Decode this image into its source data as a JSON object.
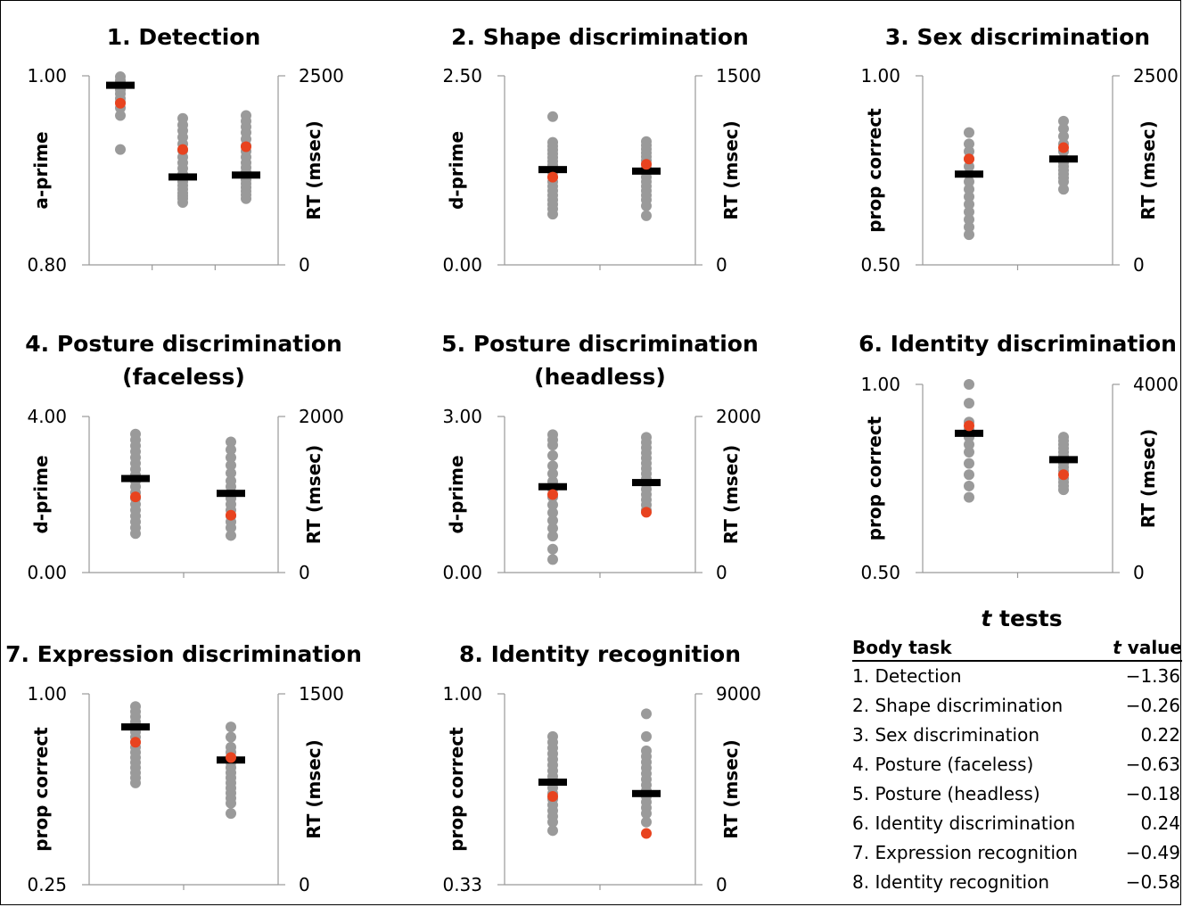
{
  "colors": {
    "dots": "#9a9a9a",
    "mean_red": "#e8431f",
    "bar": "#000000",
    "axis": "#999999"
  },
  "chart_data": [
    {
      "type": "scatter",
      "title": "1. Detection",
      "ylabel": "a-prime",
      "ylabel2": "RT (msec)",
      "ylim": [
        0.8,
        1.0
      ],
      "yticks": [
        "1.00",
        "0.80"
      ],
      "y2lim": [
        0,
        2500
      ],
      "y2ticks": [
        "2500",
        "0"
      ],
      "groups": [
        {
          "points": [
            0.999,
            0.995,
            0.992,
            0.99,
            0.988,
            0.985,
            0.981,
            0.976,
            0.972,
            0.966,
            0.958,
            0.922
          ],
          "mean": 0.99,
          "red": 0.971
        },
        {
          "points": [
            0.955,
            0.948,
            0.942,
            0.935,
            0.928,
            0.921,
            0.914,
            0.908,
            0.902,
            0.896,
            0.892,
            0.888,
            0.884,
            0.88,
            0.876,
            0.873,
            0.87,
            0.866
          ],
          "mean": 0.893,
          "red": 0.922
        },
        {
          "points": [
            0.958,
            0.952,
            0.946,
            0.94,
            0.933,
            0.926,
            0.92,
            0.914,
            0.908,
            0.903,
            0.898,
            0.894,
            0.89,
            0.886,
            0.882,
            0.878,
            0.874,
            0.87
          ],
          "mean": 0.895,
          "red": 0.925
        }
      ]
    },
    {
      "type": "scatter",
      "title": "2. Shape discrimination",
      "ylabel": "d-prime",
      "ylabel2": "RT (msec)",
      "ylim": [
        0.0,
        2.5
      ],
      "yticks": [
        "2.50",
        "0.00"
      ],
      "y2lim": [
        0,
        1500
      ],
      "y2ticks": [
        "1500",
        "0"
      ],
      "groups": [
        {
          "points": [
            1.96,
            1.62,
            1.57,
            1.52,
            1.47,
            1.42,
            1.37,
            1.32,
            1.27,
            1.22,
            1.16,
            1.1,
            1.04,
            0.98,
            0.92,
            0.86,
            0.8,
            0.74,
            0.67
          ],
          "mean": 1.26,
          "red": 1.16
        },
        {
          "points": [
            1.63,
            1.58,
            1.53,
            1.48,
            1.43,
            1.38,
            1.33,
            1.28,
            1.22,
            1.16,
            1.1,
            1.04,
            0.98,
            0.92,
            0.86,
            0.78,
            0.65
          ],
          "mean": 1.24,
          "red": 1.33
        }
      ]
    },
    {
      "type": "scatter",
      "title": "3. Sex discrimination",
      "ylabel": "prop correct",
      "ylabel2": "RT (msec)",
      "ylim": [
        0.5,
        1.0
      ],
      "yticks": [
        "1.00",
        "0.50"
      ],
      "y2lim": [
        0,
        2500
      ],
      "y2ticks": [
        "2500",
        "0"
      ],
      "groups": [
        {
          "points": [
            0.85,
            0.82,
            0.8,
            0.78,
            0.76,
            0.74,
            0.72,
            0.7,
            0.68,
            0.66,
            0.64,
            0.62,
            0.6,
            0.58
          ],
          "mean": 0.74,
          "red": 0.78
        },
        {
          "points": [
            0.88,
            0.86,
            0.84,
            0.82,
            0.8,
            0.78,
            0.77,
            0.76,
            0.75,
            0.74,
            0.73,
            0.72,
            0.7
          ],
          "mean": 0.78,
          "red": 0.81
        }
      ]
    },
    {
      "type": "scatter",
      "title": "4. Posture discrimination (faceless)",
      "ylabel": "d-prime",
      "ylabel2": "RT (msec)",
      "ylim": [
        0.0,
        4.0
      ],
      "yticks": [
        "4.00",
        "0.00"
      ],
      "y2lim": [
        0,
        2000
      ],
      "y2ticks": [
        "2000",
        "0"
      ],
      "groups": [
        {
          "points": [
            3.55,
            3.4,
            3.25,
            3.1,
            2.95,
            2.8,
            2.65,
            2.5,
            2.35,
            2.2,
            2.05,
            1.9,
            1.75,
            1.6,
            1.45,
            1.3,
            1.15,
            1.0
          ],
          "mean": 2.41,
          "red": 1.94
        },
        {
          "points": [
            3.35,
            3.15,
            2.95,
            2.75,
            2.55,
            2.35,
            2.2,
            2.05,
            1.9,
            1.75,
            1.6,
            1.45,
            1.3,
            1.15,
            0.95
          ],
          "mean": 2.03,
          "red": 1.47
        }
      ]
    },
    {
      "type": "scatter",
      "title": "5. Posture discrimination (headless)",
      "ylabel": "d-prime",
      "ylabel2": "RT (msec)",
      "ylim": [
        0.0,
        3.0
      ],
      "yticks": [
        "3.00",
        "0.00"
      ],
      "y2lim": [
        0,
        2000
      ],
      "y2ticks": [
        "2000",
        "0"
      ],
      "groups": [
        {
          "points": [
            2.65,
            2.55,
            2.45,
            2.25,
            2.05,
            1.9,
            1.75,
            1.6,
            1.45,
            1.3,
            1.15,
            1.0,
            0.85,
            0.7,
            0.45,
            0.25
          ],
          "mean": 1.65,
          "red": 1.5
        },
        {
          "points": [
            2.6,
            2.5,
            2.4,
            2.3,
            2.2,
            2.1,
            2.0,
            1.9,
            1.8,
            1.7,
            1.6,
            1.5,
            1.4,
            1.3,
            1.2
          ],
          "mean": 1.73,
          "red": 1.16
        }
      ]
    },
    {
      "type": "scatter",
      "title": "6. Identity discrimination",
      "ylabel": "prop correct",
      "ylabel2": "RT (msec)",
      "ylim": [
        0.5,
        1.0
      ],
      "yticks": [
        "1.00",
        "0.50"
      ],
      "y2lim": [
        0,
        4000
      ],
      "y2ticks": [
        "4000",
        "0"
      ],
      "groups": [
        {
          "points": [
            1.0,
            0.95,
            0.9,
            0.88,
            0.86,
            0.84,
            0.82,
            0.79,
            0.76,
            0.73,
            0.7
          ],
          "mean": 0.87,
          "red": 0.89
        },
        {
          "points": [
            0.86,
            0.85,
            0.84,
            0.83,
            0.82,
            0.81,
            0.8,
            0.79,
            0.78,
            0.77,
            0.76,
            0.75,
            0.74,
            0.73,
            0.72
          ],
          "mean": 0.8,
          "red": 0.76
        }
      ]
    },
    {
      "type": "scatter",
      "title": "7. Expression discrimination",
      "ylabel": "prop correct",
      "ylabel2": "RT (msec)",
      "ylim": [
        0.25,
        1.0
      ],
      "yticks": [
        "1.00",
        "0.25"
      ],
      "y2lim": [
        0,
        1500
      ],
      "y2ticks": [
        "1500",
        "0"
      ],
      "groups": [
        {
          "points": [
            0.95,
            0.93,
            0.91,
            0.89,
            0.87,
            0.85,
            0.83,
            0.81,
            0.79,
            0.77,
            0.75,
            0.73,
            0.71,
            0.69,
            0.67,
            0.65
          ],
          "mean": 0.87,
          "red": 0.81
        },
        {
          "points": [
            0.87,
            0.83,
            0.79,
            0.77,
            0.75,
            0.73,
            0.71,
            0.69,
            0.67,
            0.65,
            0.63,
            0.61,
            0.59,
            0.57,
            0.53
          ],
          "mean": 0.74,
          "red": 0.75
        }
      ]
    },
    {
      "type": "scatter",
      "title": "8. Identity recognition",
      "ylabel": "prop correct",
      "ylabel2": "RT (msec)",
      "ylim": [
        0.33,
        1.0
      ],
      "yticks": [
        "1.00",
        "0.33"
      ],
      "y2lim": [
        0,
        9000
      ],
      "y2ticks": [
        "9000",
        "0"
      ],
      "groups": [
        {
          "points": [
            0.85,
            0.83,
            0.81,
            0.79,
            0.77,
            0.75,
            0.73,
            0.71,
            0.69,
            0.67,
            0.65,
            0.63,
            0.61,
            0.59,
            0.57,
            0.55,
            0.52
          ],
          "mean": 0.69,
          "red": 0.64
        },
        {
          "points": [
            0.93,
            0.85,
            0.8,
            0.78,
            0.76,
            0.74,
            0.72,
            0.7,
            0.68,
            0.66,
            0.64,
            0.62,
            0.6,
            0.58,
            0.55
          ],
          "mean": 0.65,
          "red": 0.51
        }
      ]
    }
  ],
  "ttests": {
    "title_t": "t",
    "title_rest": "tests",
    "col_task": "Body task",
    "col_value_t": "t",
    "col_value_rest": "value",
    "rows": [
      {
        "task": "1. Detection",
        "value": "−1.36"
      },
      {
        "task": "2. Shape discrimination",
        "value": "−0.26"
      },
      {
        "task": "3. Sex discrimination",
        "value": "0.22"
      },
      {
        "task": "4. Posture (faceless)",
        "value": "−0.63"
      },
      {
        "task": "5. Posture (headless)",
        "value": "−0.18"
      },
      {
        "task": "6. Identity discrimination",
        "value": "0.24"
      },
      {
        "task": "7. Expression recognition",
        "value": "−0.49"
      },
      {
        "task": "8. Identity recognition",
        "value": "−0.58"
      }
    ]
  }
}
